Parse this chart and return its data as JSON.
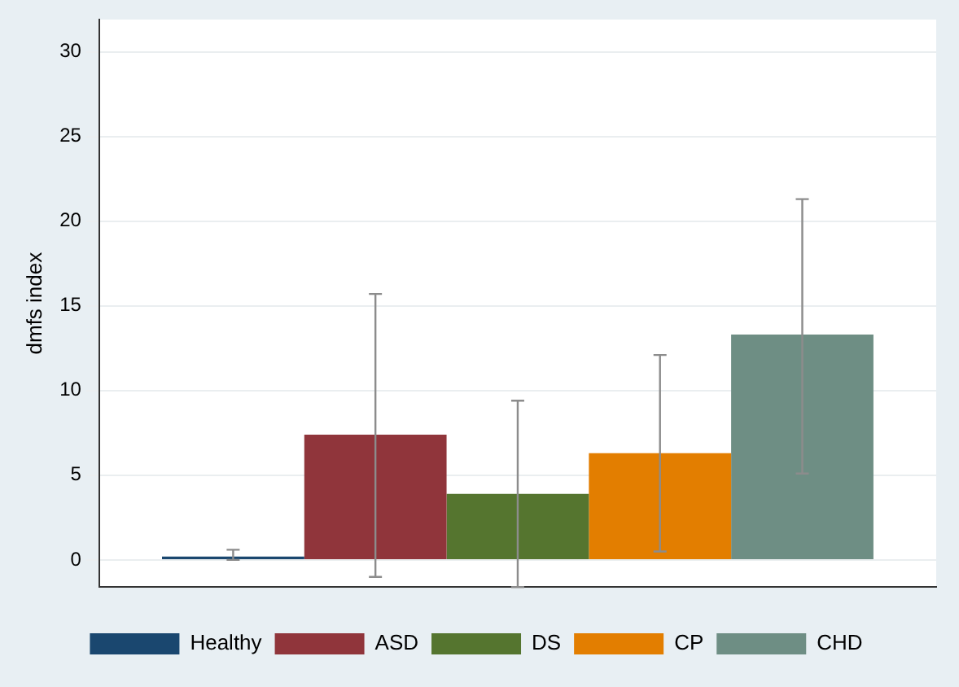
{
  "chart_data": {
    "type": "bar",
    "ylabel": "dmfs index",
    "categories": [
      null
    ],
    "series": [
      {
        "name": "Healthy",
        "color": "#1a476f",
        "values": [
          0.2
        ],
        "errors": [
          [
            0,
            0.6
          ]
        ]
      },
      {
        "name": "ASD",
        "color": "#90353b",
        "values": [
          7.4
        ],
        "errors": [
          [
            -1.0,
            15.7
          ]
        ]
      },
      {
        "name": "DS",
        "color": "#55752f",
        "values": [
          3.9
        ],
        "errors": [
          [
            -1.6,
            9.4
          ]
        ]
      },
      {
        "name": "CP",
        "color": "#e37e00",
        "values": [
          6.3
        ],
        "errors": [
          [
            0.5,
            12.1
          ]
        ]
      },
      {
        "name": "CHD",
        "color": "#6e8e84",
        "values": [
          13.3
        ],
        "errors": [
          [
            5.1,
            21.3
          ]
        ]
      }
    ],
    "ylim": [
      -1.6,
      31.9
    ],
    "yticks": [
      0,
      5,
      10,
      15,
      20,
      25,
      30
    ],
    "grid": "y",
    "legend": "bottom"
  }
}
